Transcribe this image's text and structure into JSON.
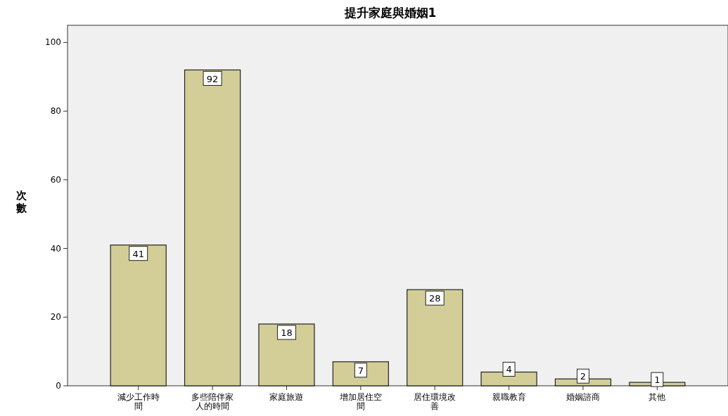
{
  "chart_data": {
    "type": "bar",
    "title": "提升家庭與婚姻1",
    "ylabel": "次數",
    "categories": [
      "減少工作時間",
      "多些陪伴家人的時間",
      "家庭旅遊",
      "增加居住空間",
      "居住環境改善",
      "親職教育",
      "婚姻諮商",
      "其他"
    ],
    "values": [
      41,
      92,
      18,
      7,
      28,
      4,
      2,
      1
    ],
    "color": "#d3ce97",
    "ylim": [
      0,
      105
    ],
    "yticks": [
      0,
      20,
      40,
      60,
      80,
      100
    ],
    "data_labels": true
  }
}
